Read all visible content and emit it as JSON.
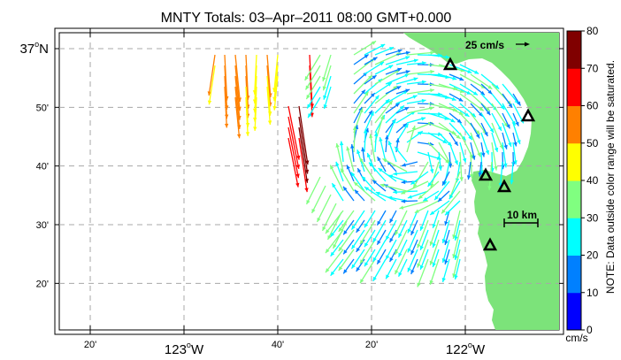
{
  "title": "MNTY Totals: 03–Apr–2011 08:00 GMT+0.000",
  "map": {
    "lat_ticks": [
      {
        "value": 37.0,
        "label": "37",
        "suffix": "N"
      },
      {
        "value": 36.8333,
        "label": "50'",
        "suffix": ""
      },
      {
        "value": 36.6667,
        "label": "40'",
        "suffix": ""
      },
      {
        "value": 36.5,
        "label": "30'",
        "suffix": ""
      },
      {
        "value": 36.3333,
        "label": "20'",
        "suffix": ""
      }
    ],
    "lon_ticks": [
      {
        "value": -123.3333,
        "label": "20'",
        "suffix": ""
      },
      {
        "value": -123.0,
        "label": "123",
        "suffix": "W"
      },
      {
        "value": -122.6667,
        "label": "40'",
        "suffix": ""
      },
      {
        "value": -122.3333,
        "label": "20'",
        "suffix": ""
      },
      {
        "value": -122.0,
        "label": "122",
        "suffix": "W"
      }
    ],
    "degree_symbol": "o",
    "scale_label": "10 km",
    "reference_vector_label": "25 cm/s",
    "sites": [
      "site-1",
      "site-2",
      "site-3",
      "site-4"
    ],
    "colors": {
      "land": "#7ce37a",
      "ocean": "#ffffff",
      "grid": "#a8a8a8",
      "site_marker": "#000000"
    }
  },
  "colorbar": {
    "min": 0,
    "max": 80,
    "tick_labels": [
      "0",
      "10",
      "20",
      "30",
      "40",
      "50",
      "60",
      "70",
      "80"
    ],
    "unit": "cm/s",
    "note": "NOTE: Data outside color range will be saturated.",
    "colors": [
      "#0000ff",
      "#0080ff",
      "#00ffff",
      "#80ff80",
      "#ffff00",
      "#ff8000",
      "#ff0000",
      "#800000"
    ]
  },
  "vectors_summary": {
    "offshore_northwest": "35-70 cm/s, southward",
    "central_bay": "20-35 cm/s, clockwise eddy",
    "nearshore_south": "15-30 cm/s, southwestward"
  }
}
